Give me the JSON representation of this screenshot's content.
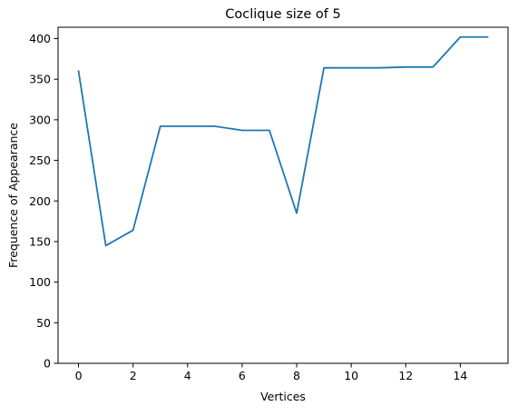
{
  "chart_data": {
    "type": "line",
    "title": "Coclique size of 5",
    "xlabel": "Vertices",
    "ylabel": "Frequence of Appearance",
    "xlim": [
      -0.75,
      15.75
    ],
    "ylim": [
      0,
      414
    ],
    "xticks": [
      0,
      2,
      4,
      6,
      8,
      10,
      12,
      14
    ],
    "yticks": [
      0,
      50,
      100,
      150,
      200,
      250,
      300,
      350,
      400
    ],
    "grid": false,
    "series": [
      {
        "color": "#1f77b4",
        "x": [
          0,
          1,
          2,
          3,
          4,
          5,
          6,
          7,
          8,
          9,
          10,
          11,
          12,
          13,
          14,
          15
        ],
        "values": [
          360,
          145,
          164,
          292,
          292,
          292,
          287,
          287,
          185,
          364,
          364,
          364,
          365,
          365,
          402,
          402
        ]
      }
    ]
  }
}
